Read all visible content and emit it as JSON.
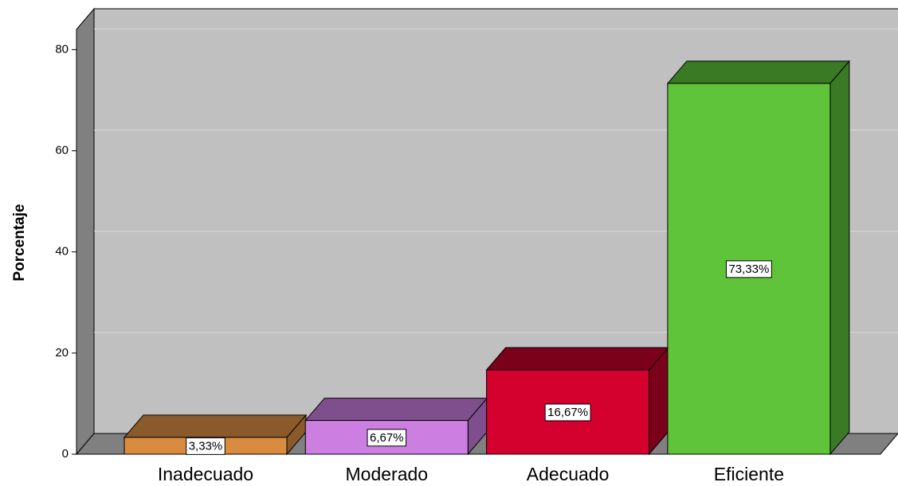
{
  "chart_data": {
    "type": "bar3d",
    "y_label": "Porcentaje",
    "categories": [
      "Inadecuado",
      "Moderado",
      "Adecuado",
      "Eficiente"
    ],
    "values": [
      3.33,
      6.67,
      16.67,
      73.33
    ],
    "value_labels": [
      "3,33%",
      "6,67%",
      "16,67%",
      "73,33%"
    ],
    "colors": [
      "#d98c40",
      "#cc7fe0",
      "#d4002e",
      "#60c43a"
    ],
    "top_colors": [
      "#8a5a2b",
      "#7e4f8c",
      "#7b0019",
      "#3a7a25"
    ],
    "ylim": [
      0,
      84
    ],
    "yticks": [
      0,
      20,
      40,
      60,
      80
    ],
    "grid": true
  }
}
